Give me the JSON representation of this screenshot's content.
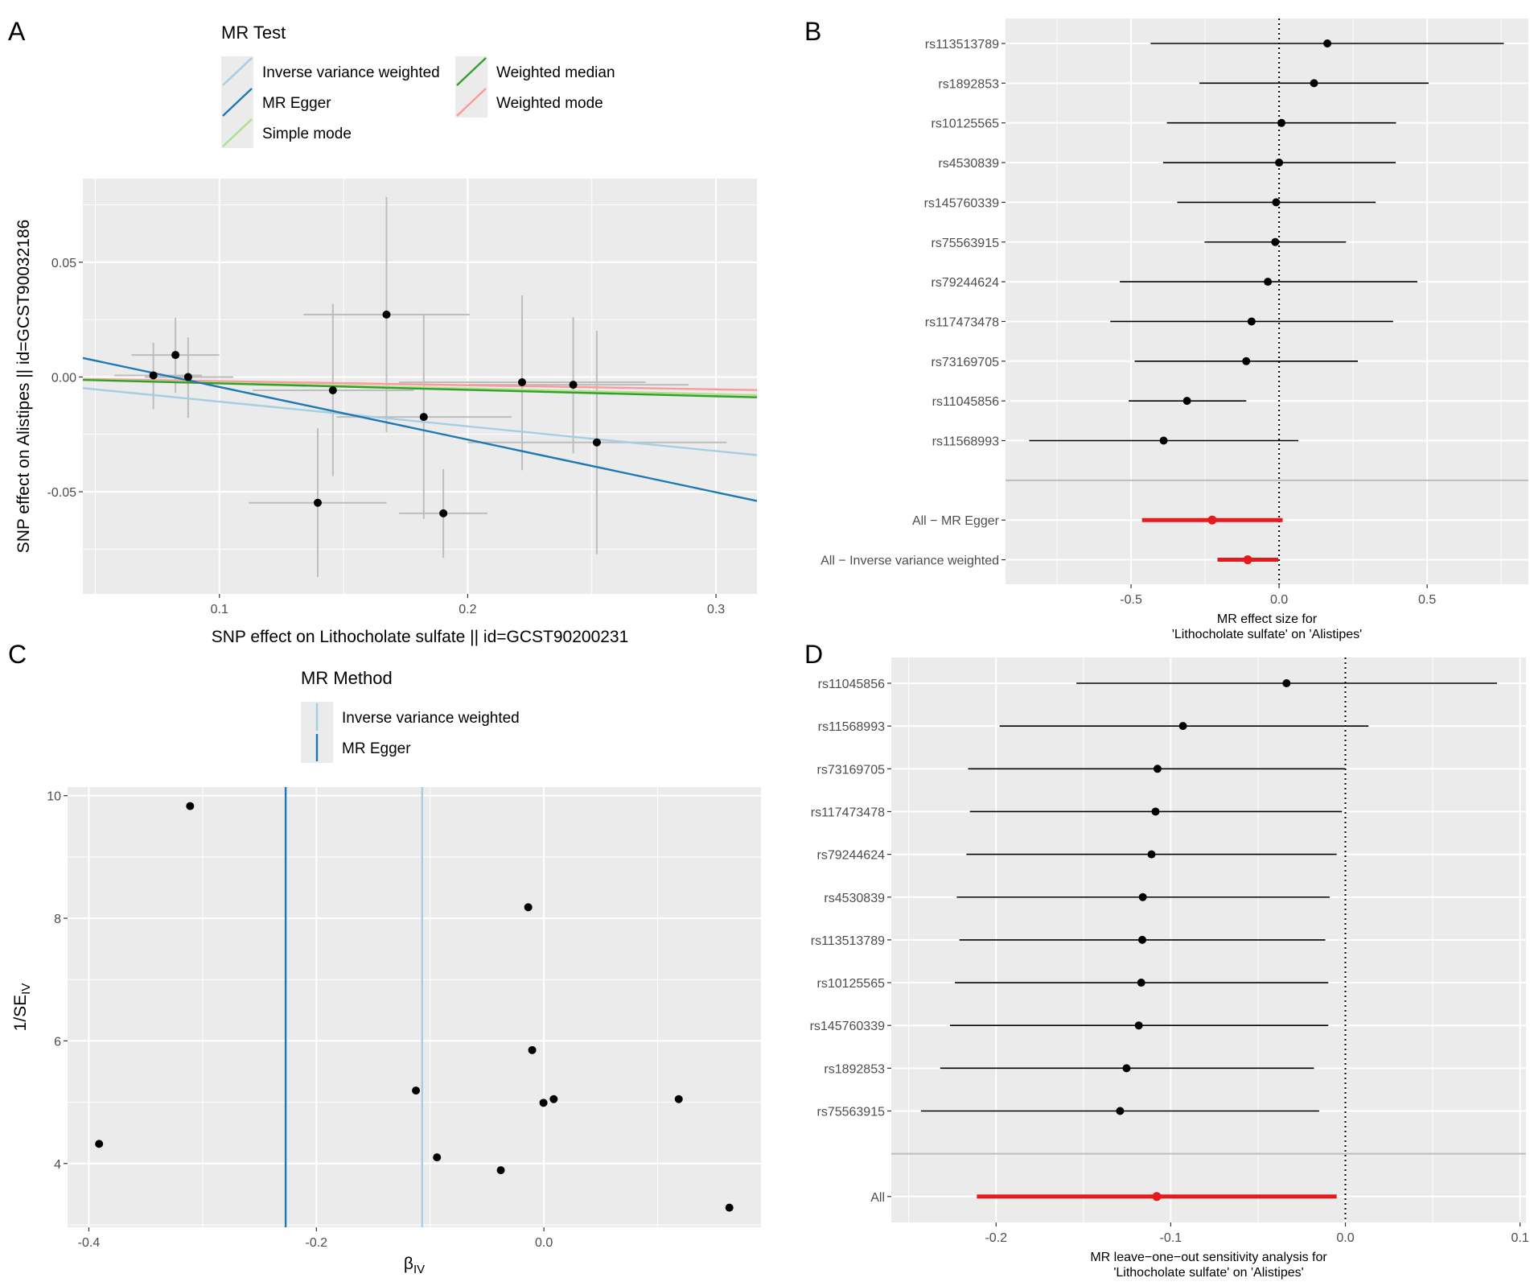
{
  "chart_data": [
    {
      "panel_label": "A",
      "type": "scatter",
      "xlabel": "SNP effect on Lithocholate sulfate || id=GCST90200231",
      "ylabel": "SNP effect on Alistipes || id=GCST90032186",
      "xlim": [
        0.045,
        0.3165
      ],
      "ylim": [
        -0.0945,
        0.0864
      ],
      "xticks": [
        {
          "v": 0.1,
          "label": "0.1"
        },
        {
          "v": 0.2,
          "label": "0.2"
        },
        {
          "v": 0.3,
          "label": "0.3"
        }
      ],
      "yticks": [
        {
          "v": -0.05,
          "label": "-0.05"
        },
        {
          "v": 0.0,
          "label": "0.00"
        },
        {
          "v": 0.05,
          "label": "0.05"
        }
      ],
      "grid": true,
      "legend": {
        "title": "MR Test",
        "placement": "top",
        "entries": [
          {
            "name": "Inverse variance weighted",
            "color": "#A6CEE3"
          },
          {
            "name": "MR Egger",
            "color": "#1F78B4"
          },
          {
            "name": "Simple mode",
            "color": "#B2DF8A"
          },
          {
            "name": "Weighted median",
            "color": "#33A02C"
          },
          {
            "name": "Weighted mode",
            "color": "#FB9A99"
          }
        ]
      },
      "lines": [
        {
          "method": "Weighted mode",
          "slope": -0.018,
          "intercept": 0,
          "color": "#FB9A99"
        },
        {
          "method": "Simple mode",
          "slope": -0.025,
          "intercept": 0,
          "color": "#B2DF8A"
        },
        {
          "method": "Weighted median",
          "slope": -0.028,
          "intercept": 0,
          "color": "#33A02C"
        },
        {
          "method": "Inverse variance weighted",
          "slope": -0.1075,
          "intercept": 0,
          "color": "#A6CEE3"
        },
        {
          "method": "MR Egger",
          "slope": -0.2294,
          "intercept": 0.0186,
          "color": "#1F78B4"
        }
      ],
      "points": [
        {
          "x": 0.0734,
          "y": 0.0007,
          "xlo": 0.0576,
          "xhi": 0.093,
          "ylo": -0.014,
          "yhi": 0.0149
        },
        {
          "x": 0.0823,
          "y": 0.0096,
          "xlo": 0.0646,
          "xhi": 0.1,
          "ylo": -0.0068,
          "yhi": 0.0258
        },
        {
          "x": 0.0874,
          "y": 0.0,
          "xlo": 0.07,
          "xhi": 0.1055,
          "ylo": -0.0178,
          "yhi": 0.0173
        },
        {
          "x": 0.1457,
          "y": -0.0058,
          "xlo": 0.1134,
          "xhi": 0.1783,
          "ylo": -0.0432,
          "yhi": 0.0319
        },
        {
          "x": 0.1673,
          "y": 0.0272,
          "xlo": 0.1339,
          "xhi": 0.2008,
          "ylo": -0.024,
          "yhi": 0.0784
        },
        {
          "x": 0.1823,
          "y": -0.0174,
          "xlo": 0.1472,
          "xhi": 0.2177,
          "ylo": -0.0618,
          "yhi": 0.0269
        },
        {
          "x": 0.1396,
          "y": -0.0548,
          "xlo": 0.1118,
          "xhi": 0.1673,
          "ylo": -0.0871,
          "yhi": -0.0224
        },
        {
          "x": 0.1902,
          "y": -0.0594,
          "xlo": 0.1724,
          "xhi": 0.2079,
          "ylo": -0.0788,
          "yhi": -0.0401
        },
        {
          "x": 0.2219,
          "y": -0.0023,
          "xlo": 0.1724,
          "xhi": 0.2717,
          "ylo": -0.0406,
          "yhi": 0.0355
        },
        {
          "x": 0.2425,
          "y": -0.0034,
          "xlo": 0.2004,
          "xhi": 0.289,
          "ylo": -0.0333,
          "yhi": 0.0261
        },
        {
          "x": 0.252,
          "y": -0.0285,
          "xlo": 0.2,
          "xhi": 0.3043,
          "ylo": -0.0772,
          "yhi": 0.0201
        }
      ]
    },
    {
      "panel_label": "B",
      "type": "forest",
      "xlabel": [
        "MR effect size for",
        "'Lithocholate sulfate' on 'Alistipes'"
      ],
      "xlim": [
        -0.924,
        0.842
      ],
      "xticks": [
        {
          "v": -0.5,
          "label": "-0.5"
        },
        {
          "v": 0.0,
          "label": "0.0"
        },
        {
          "v": 0.5,
          "label": "0.5"
        }
      ],
      "ref_line": 0,
      "rows": [
        {
          "label": "rs113513789",
          "b": 0.163,
          "lo": -0.434,
          "hi": 0.759
        },
        {
          "label": "rs1892853",
          "b": 0.118,
          "lo": -0.269,
          "hi": 0.505
        },
        {
          "label": "rs10125565",
          "b": 0.008,
          "lo": -0.379,
          "hi": 0.395
        },
        {
          "label": "rs4530839",
          "b": 0.0,
          "lo": -0.392,
          "hi": 0.394
        },
        {
          "label": "rs145760339",
          "b": -0.01,
          "lo": -0.344,
          "hi": 0.326
        },
        {
          "label": "rs75563915",
          "b": -0.013,
          "lo": -0.252,
          "hi": 0.226
        },
        {
          "label": "rs79244624",
          "b": -0.038,
          "lo": -0.538,
          "hi": 0.467
        },
        {
          "label": "rs117473478",
          "b": -0.093,
          "lo": -0.57,
          "hi": 0.385
        },
        {
          "label": "rs73169705",
          "b": -0.111,
          "lo": -0.488,
          "hi": 0.266
        },
        {
          "label": "rs11045856",
          "b": -0.311,
          "lo": -0.508,
          "hi": -0.111
        },
        {
          "label": "rs11568993",
          "b": -0.39,
          "lo": -0.844,
          "hi": 0.065
        }
      ],
      "summary": [
        {
          "label": "All − MR Egger",
          "b": -0.226,
          "lo": -0.463,
          "hi": 0.012
        },
        {
          "label": "All − Inverse variance weighted",
          "b": -0.106,
          "lo": -0.208,
          "hi": -0.003
        }
      ],
      "summary_color": "#E41A1C"
    },
    {
      "panel_label": "C",
      "type": "scatter",
      "xlabel": "β",
      "xlabel_sub": "IV",
      "ylabel": "1/SE",
      "ylabel_sub": "IV",
      "xlim": [
        -0.4187,
        0.1908
      ],
      "ylim": [
        2.96,
        10.14
      ],
      "xticks": [
        {
          "v": -0.4,
          "label": "-0.4"
        },
        {
          "v": -0.2,
          "label": "-0.2"
        },
        {
          "v": 0.0,
          "label": "0.0"
        }
      ],
      "yticks": [
        {
          "v": 4,
          "label": "4"
        },
        {
          "v": 6,
          "label": "6"
        },
        {
          "v": 8,
          "label": "8"
        },
        {
          "v": 10,
          "label": "10"
        }
      ],
      "grid": true,
      "legend": {
        "title": "MR Method",
        "placement": "top",
        "entries": [
          {
            "name": "Inverse variance weighted",
            "color": "#A6CEE3"
          },
          {
            "name": "MR Egger",
            "color": "#1F78B4"
          }
        ]
      },
      "vlines": [
        {
          "method": "MR Egger",
          "x": -0.227,
          "color": "#1F78B4"
        },
        {
          "method": "Inverse variance weighted",
          "x": -0.107,
          "color": "#A6CEE3"
        }
      ],
      "points": [
        {
          "x": -0.311,
          "y": 9.83
        },
        {
          "x": -0.391,
          "y": 4.32
        },
        {
          "x": -0.1125,
          "y": 5.19
        },
        {
          "x": -0.094,
          "y": 4.1
        },
        {
          "x": -0.0138,
          "y": 8.18
        },
        {
          "x": -0.0103,
          "y": 5.85
        },
        {
          "x": -0.0004,
          "y": 4.99
        },
        {
          "x": 0.0086,
          "y": 5.05
        },
        {
          "x": -0.0379,
          "y": 3.89
        },
        {
          "x": 0.1185,
          "y": 5.05
        },
        {
          "x": 0.163,
          "y": 3.28
        }
      ]
    },
    {
      "panel_label": "D",
      "type": "forest",
      "xlabel": [
        "MR leave−one−out sensitivity analysis for",
        "'Lithocholate sulfate' on 'Alistipes'"
      ],
      "xlim": [
        -0.26,
        0.1034
      ],
      "xticks": [
        {
          "v": -0.2,
          "label": "-0.2"
        },
        {
          "v": -0.1,
          "label": "-0.1"
        },
        {
          "v": 0.0,
          "label": "0.0"
        },
        {
          "v": 0.1,
          "label": "0.1"
        }
      ],
      "ref_line": 0,
      "rows": [
        {
          "label": "rs11045856",
          "b": -0.0337,
          "lo": -0.154,
          "hi": 0.0868
        },
        {
          "label": "rs11568993",
          "b": -0.093,
          "lo": -0.198,
          "hi": 0.0132
        },
        {
          "label": "rs73169705",
          "b": -0.1076,
          "lo": -0.216,
          "hi": 0.0
        },
        {
          "label": "rs117473478",
          "b": -0.1087,
          "lo": -0.215,
          "hi": -0.002
        },
        {
          "label": "rs79244624",
          "b": -0.111,
          "lo": -0.217,
          "hi": -0.005
        },
        {
          "label": "rs4530839",
          "b": -0.116,
          "lo": -0.2225,
          "hi": -0.009
        },
        {
          "label": "rs113513789",
          "b": -0.1163,
          "lo": -0.221,
          "hi": -0.0115
        },
        {
          "label": "rs10125565",
          "b": -0.1169,
          "lo": -0.2236,
          "hi": -0.0098
        },
        {
          "label": "rs145760339",
          "b": -0.1183,
          "lo": -0.2264,
          "hi": -0.0098
        },
        {
          "label": "rs1892853",
          "b": -0.1253,
          "lo": -0.232,
          "hi": -0.018
        },
        {
          "label": "rs75563915",
          "b": -0.129,
          "lo": -0.243,
          "hi": -0.015
        }
      ],
      "summary": [
        {
          "label": "All",
          "b": -0.108,
          "lo": -0.211,
          "hi": -0.005
        }
      ],
      "summary_color": "#E41A1C"
    }
  ]
}
